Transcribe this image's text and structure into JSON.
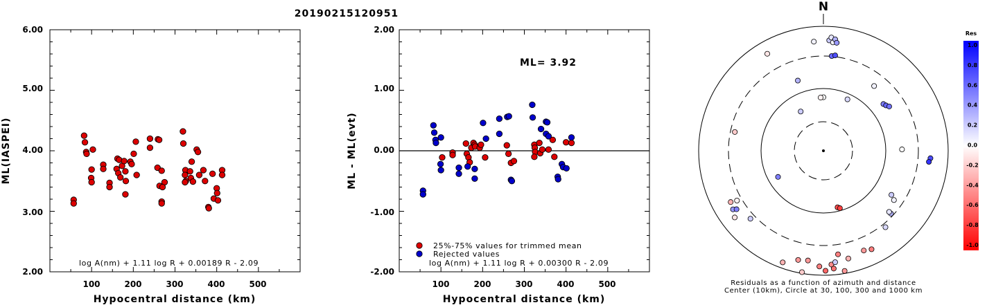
{
  "chart_data": [
    {
      "type": "scatter",
      "title": "20190215120951",
      "xlabel": "Hypocentral distance (km)",
      "ylabel": "ML(IASPEI)",
      "xlim": [
        0,
        600
      ],
      "ylim": [
        2.0,
        6.0
      ],
      "x_ticks": [
        "100",
        "200",
        "300",
        "400",
        "500"
      ],
      "y_ticks": [
        "2.00",
        "3.00",
        "4.00",
        "5.00",
        "6.00"
      ],
      "formula": "log A(nm) + 1.11 log R + 0.00189 R - 2.09",
      "marker_color": "#dd0000",
      "points": [
        [
          57,
          3.19
        ],
        [
          57,
          3.13
        ],
        [
          82,
          4.25
        ],
        [
          84,
          4.14
        ],
        [
          87,
          3.98
        ],
        [
          88,
          3.95
        ],
        [
          103,
          4.02
        ],
        [
          100,
          3.69
        ],
        [
          99,
          3.55
        ],
        [
          100,
          3.48
        ],
        [
          128,
          3.77
        ],
        [
          128,
          3.7
        ],
        [
          143,
          3.47
        ],
        [
          143,
          3.4
        ],
        [
          162,
          3.87
        ],
        [
          160,
          3.7
        ],
        [
          166,
          3.85
        ],
        [
          164,
          3.63
        ],
        [
          173,
          3.75
        ],
        [
          169,
          3.56
        ],
        [
          178,
          3.83
        ],
        [
          181,
          3.66
        ],
        [
          182,
          3.5
        ],
        [
          181,
          3.28
        ],
        [
          193,
          3.82
        ],
        [
          196,
          3.78
        ],
        [
          206,
          4.15
        ],
        [
          201,
          3.95
        ],
        [
          208,
          3.6
        ],
        [
          240,
          4.2
        ],
        [
          240,
          4.05
        ],
        [
          259,
          4.19
        ],
        [
          262,
          4.18
        ],
        [
          258,
          3.72
        ],
        [
          263,
          3.42
        ],
        [
          275,
          3.48
        ],
        [
          268,
          3.67
        ],
        [
          270,
          3.4
        ],
        [
          268,
          3.16
        ],
        [
          268,
          3.13
        ],
        [
          319,
          4.32
        ],
        [
          320,
          4.12
        ],
        [
          325,
          3.68
        ],
        [
          324,
          3.6
        ],
        [
          326,
          3.5
        ],
        [
          324,
          3.48
        ],
        [
          336,
          3.66
        ],
        [
          338,
          3.55
        ],
        [
          343,
          3.49
        ],
        [
          340,
          3.82
        ],
        [
          352,
          4.02
        ],
        [
          355,
          3.98
        ],
        [
          358,
          3.6
        ],
        [
          368,
          3.68
        ],
        [
          372,
          3.5
        ],
        [
          380,
          3.07
        ],
        [
          381,
          3.05
        ],
        [
          390,
          3.62
        ],
        [
          393,
          3.21
        ],
        [
          400,
          3.38
        ],
        [
          401,
          3.3
        ],
        [
          403,
          3.18
        ],
        [
          413,
          3.68
        ],
        [
          413,
          3.6
        ]
      ]
    },
    {
      "type": "scatter",
      "title": "",
      "xlabel": "Hypocentral distance (km)",
      "ylabel": "ML - ML(evt)",
      "xlim": [
        0,
        600
      ],
      "ylim": [
        -2.0,
        2.0
      ],
      "x_ticks": [
        "100",
        "200",
        "300",
        "400",
        "500"
      ],
      "y_ticks": [
        "-2.00",
        "-1.00",
        "0.00",
        "1.00",
        "2.00"
      ],
      "annotation": "ML= 3.92",
      "formula": "log A(nm) + 1.11 log R + 0.00300 R - 2.09",
      "legend": [
        "25%-75% values for trimmed mean",
        "Rejected values"
      ],
      "legend_position": "bottom-left",
      "series": [
        {
          "name": "25%-75% values for trimmed mean",
          "color": "#dd0000",
          "points": [
            [
              103,
              -0.11
            ],
            [
              128,
              -0.03
            ],
            [
              128,
              -0.07
            ],
            [
              160,
              0.12
            ],
            [
              162,
              -0.05
            ],
            [
              166,
              -0.11
            ],
            [
              169,
              -0.19
            ],
            [
              173,
              0.05
            ],
            [
              178,
              0.13
            ],
            [
              181,
              0.1
            ],
            [
              182,
              0.07
            ],
            [
              193,
              0.05
            ],
            [
              196,
              0.1
            ],
            [
              206,
              -0.11
            ],
            [
              258,
              0.09
            ],
            [
              262,
              -0.05
            ],
            [
              268,
              -0.2
            ],
            [
              275,
              -0.17
            ],
            [
              324,
              0.1
            ],
            [
              325,
              0.05
            ],
            [
              326,
              -0.02
            ],
            [
              324,
              -0.1
            ],
            [
              336,
              0.13
            ],
            [
              338,
              -0.04
            ],
            [
              343,
              0.02
            ],
            [
              358,
              0.02
            ],
            [
              368,
              0.18
            ],
            [
              372,
              -0.1
            ],
            [
              400,
              0.14
            ],
            [
              413,
              0.13
            ]
          ]
        },
        {
          "name": "Rejected values",
          "color": "#0000cc",
          "points": [
            [
              57,
              -0.66
            ],
            [
              57,
              -0.72
            ],
            [
              82,
              0.42
            ],
            [
              84,
              0.3
            ],
            [
              87,
              0.18
            ],
            [
              88,
              0.13
            ],
            [
              100,
              0.22
            ],
            [
              99,
              -0.22
            ],
            [
              100,
              -0.32
            ],
            [
              143,
              -0.28
            ],
            [
              143,
              -0.38
            ],
            [
              164,
              -0.26
            ],
            [
              181,
              -0.3
            ],
            [
              181,
              -0.46
            ],
            [
              201,
              0.46
            ],
            [
              208,
              0.2
            ],
            [
              240,
              0.28
            ],
            [
              240,
              0.53
            ],
            [
              259,
              0.56
            ],
            [
              263,
              0.57
            ],
            [
              268,
              -0.48
            ],
            [
              270,
              -0.5
            ],
            [
              319,
              0.76
            ],
            [
              320,
              0.55
            ],
            [
              340,
              0.36
            ],
            [
              352,
              0.48
            ],
            [
              355,
              0.47
            ],
            [
              352,
              0.28
            ],
            [
              358,
              0.24
            ],
            [
              380,
              -0.43
            ],
            [
              381,
              -0.47
            ],
            [
              390,
              -0.22
            ],
            [
              393,
              -0.27
            ],
            [
              401,
              -0.29
            ],
            [
              413,
              0.22
            ]
          ]
        }
      ]
    },
    {
      "type": "polar-scatter",
      "north_label": "N",
      "caption_line1": "Residuals as a function of azimuth and distance",
      "caption_line2": "Center (10km), Circle at 30, 100, 300 and 1000 km",
      "circle_radii_km": [
        30,
        100,
        300,
        1000
      ],
      "colorbar": {
        "title": "Res",
        "ticks": [
          "1.0",
          "0.8",
          "0.6",
          "0.4",
          "0.2",
          "0.0",
          "-0.2",
          "-0.4",
          "-0.6",
          "-0.8",
          "-1.0"
        ],
        "range": [
          -1.0,
          1.0
        ]
      },
      "points": [
        {
          "az": 3,
          "d": 444,
          "res": 0.2
        },
        {
          "az": 4,
          "d": 456,
          "res": 0.1
        },
        {
          "az": 5,
          "d": 437,
          "res": 0.05
        },
        {
          "az": 6,
          "d": 450,
          "res": 0.3
        },
        {
          "az": 7,
          "d": 437,
          "res": 0.4
        },
        {
          "az": 5,
          "d": 382,
          "res": 0.6
        },
        {
          "az": 7,
          "d": 386,
          "res": 0.7
        },
        {
          "az": 25,
          "d": 228,
          "res": 0.15
        },
        {
          "az": 38,
          "d": 330,
          "res": 0.05
        },
        {
          "az": 52,
          "d": 305,
          "res": 0.5
        },
        {
          "az": 54,
          "d": 310,
          "res": 0.6
        },
        {
          "az": 56,
          "d": 318,
          "res": 0.55
        },
        {
          "az": 89,
          "d": 315,
          "res": 0.0
        },
        {
          "az": 94,
          "d": 430,
          "res": 0.7
        },
        {
          "az": 96,
          "d": 425,
          "res": 0.8
        },
        {
          "az": 0,
          "d": 215,
          "res": 0.0
        },
        {
          "az": 357,
          "d": 214,
          "res": -0.05
        },
        {
          "az": 355,
          "d": 440,
          "res": 0.05
        },
        {
          "az": 340,
          "d": 300,
          "res": 0.3
        },
        {
          "az": 330,
          "d": 450,
          "res": -0.1
        },
        {
          "az": 330,
          "d": 182,
          "res": 0.2
        },
        {
          "az": 282,
          "d": 363,
          "res": -0.2
        },
        {
          "az": 240,
          "d": 400,
          "res": -0.05
        },
        {
          "az": 233,
          "d": 445,
          "res": -0.1
        },
        {
          "az": 237,
          "d": 432,
          "res": 0.4
        },
        {
          "az": 236,
          "d": 420,
          "res": 0.5
        },
        {
          "az": 241,
          "d": 425,
          "res": -0.3
        },
        {
          "az": 227,
          "d": 400,
          "res": 0.2
        },
        {
          "az": 240,
          "d": 210,
          "res": 0.5
        },
        {
          "az": 193,
          "d": 450,
          "res": -0.4
        },
        {
          "az": 200,
          "d": 477,
          "res": -0.3
        },
        {
          "az": 190,
          "d": 495,
          "res": -0.2
        },
        {
          "az": 188,
          "d": 445,
          "res": -0.4
        },
        {
          "az": 182,
          "d": 465,
          "res": -0.5
        },
        {
          "az": 179,
          "d": 482,
          "res": -0.6
        },
        {
          "az": 176,
          "d": 458,
          "res": -0.45
        },
        {
          "az": 175,
          "d": 475,
          "res": -0.55
        },
        {
          "az": 174,
          "d": 450,
          "res": 0.2
        },
        {
          "az": 170,
          "d": 490,
          "res": -0.4
        },
        {
          "az": 172,
          "d": 420,
          "res": -0.5
        },
        {
          "az": 167,
          "d": 444,
          "res": -0.3
        },
        {
          "az": 158,
          "d": 432,
          "res": -0.4
        },
        {
          "az": 154,
          "d": 440,
          "res": -0.5
        },
        {
          "az": 141,
          "d": 395,
          "res": 0.15
        },
        {
          "az": 133,
          "d": 370,
          "res": 0.3
        },
        {
          "az": 133,
          "d": 360,
          "res": 0.1
        },
        {
          "az": 125,
          "d": 345,
          "res": 0.05
        },
        {
          "az": 123,
          "d": 325,
          "res": 0.2
        },
        {
          "az": 166,
          "d": 234,
          "res": -0.7
        },
        {
          "az": 164,
          "d": 240,
          "res": -0.75
        }
      ]
    }
  ]
}
